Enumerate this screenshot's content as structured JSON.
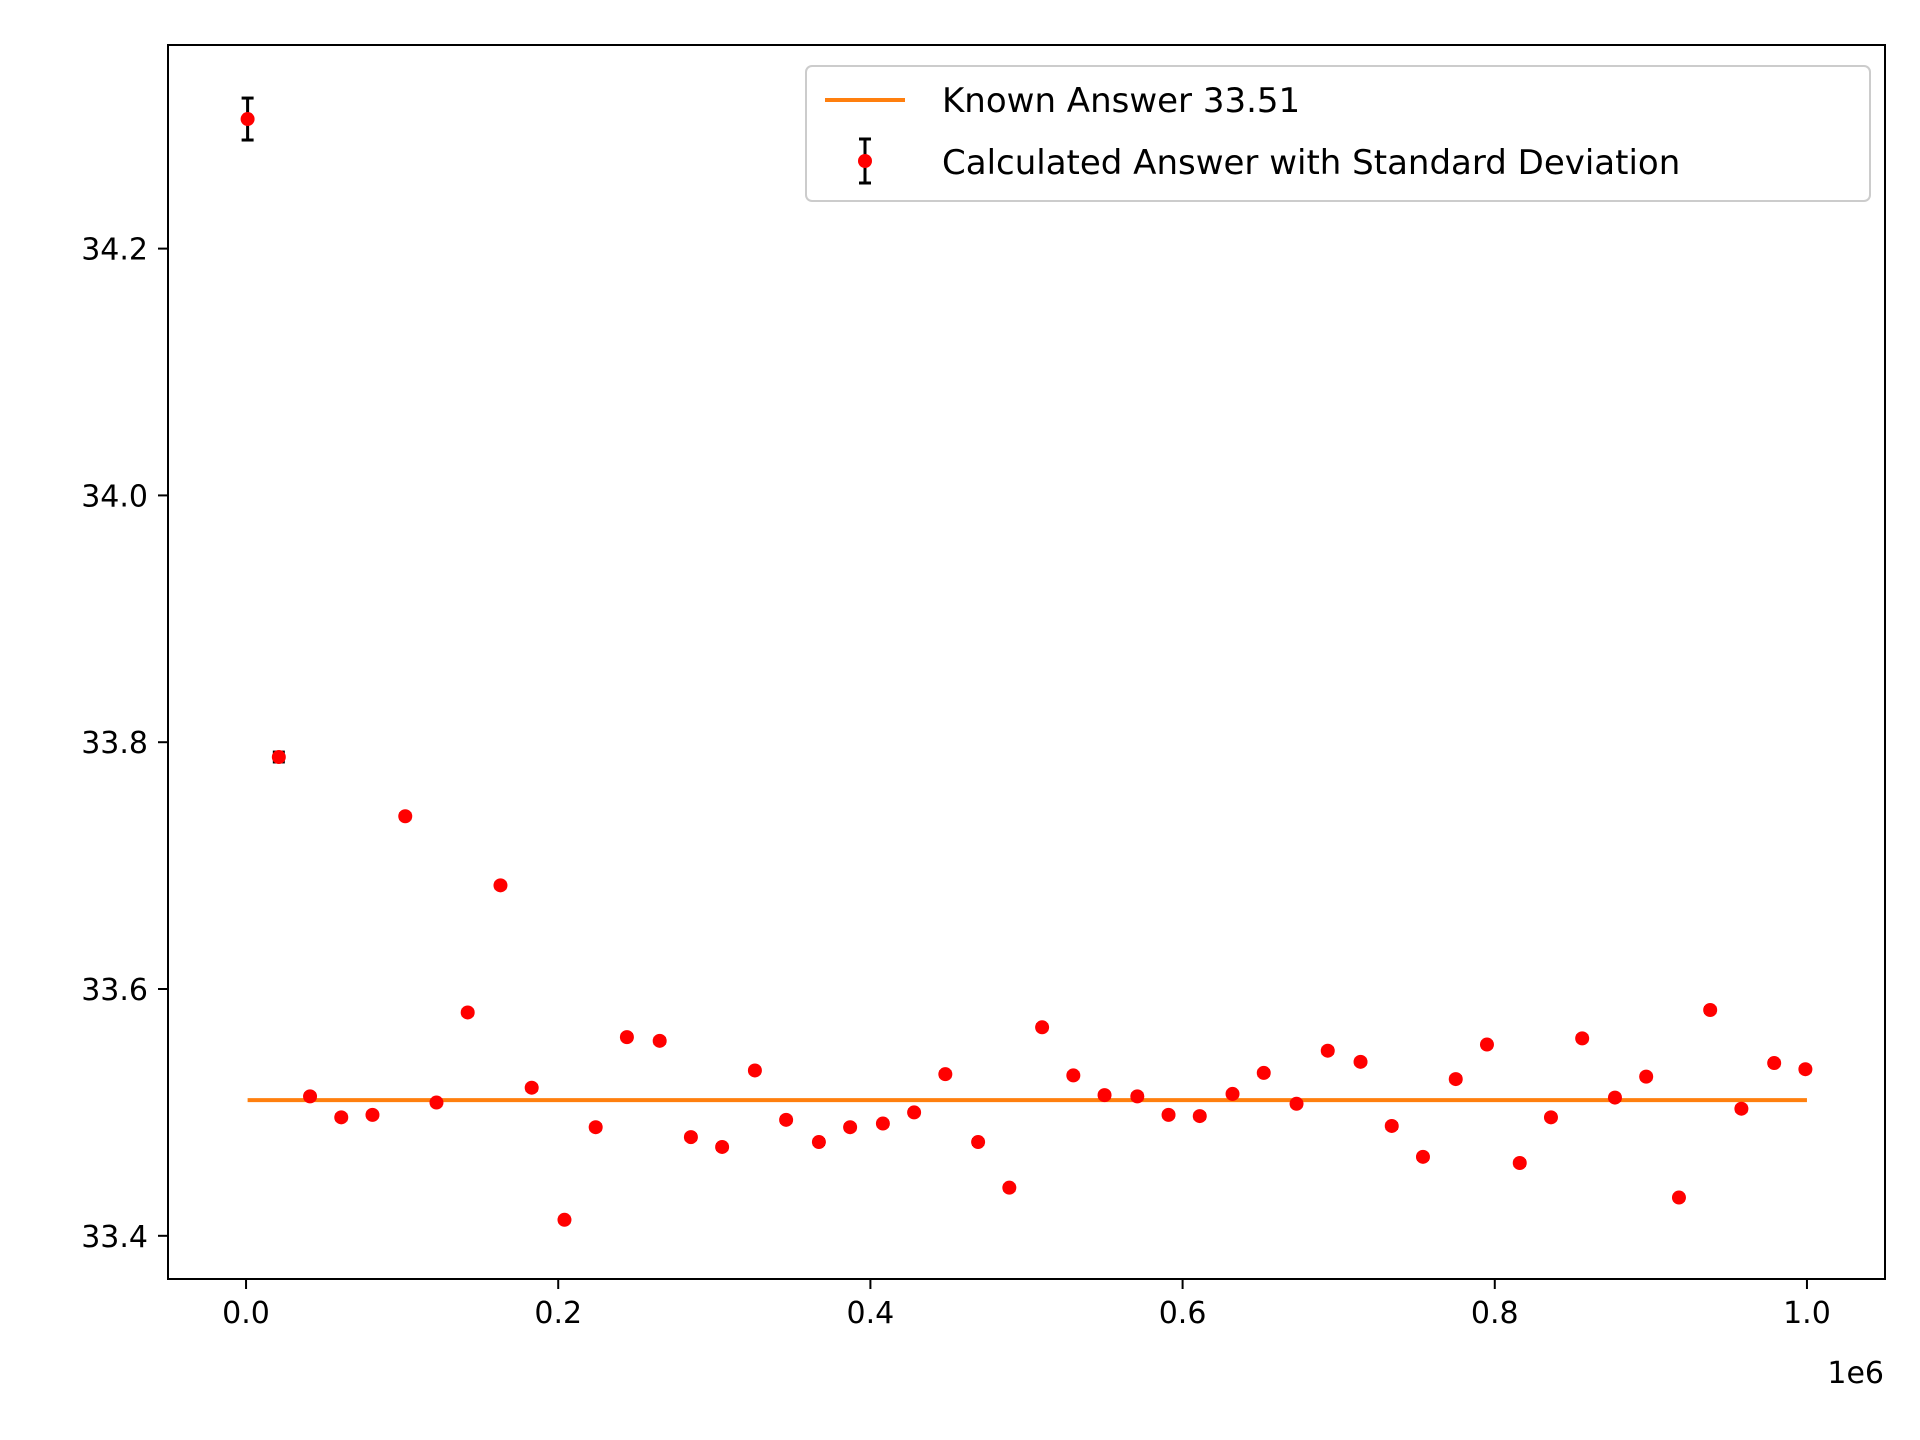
{
  "chart_data": {
    "type": "scatter",
    "title": "",
    "xlabel": "",
    "ylabel": "",
    "x_offset_label": "1e6",
    "xlim": [
      -50000,
      1050000
    ],
    "ylim": [
      33.365,
      34.365
    ],
    "xticks": [
      0,
      200000,
      400000,
      600000,
      800000,
      1000000
    ],
    "xtick_labels": [
      "0.0",
      "0.2",
      "0.4",
      "0.6",
      "0.8",
      "1.0"
    ],
    "yticks": [
      33.4,
      33.6,
      33.8,
      34.0,
      34.2
    ],
    "ytick_labels": [
      "33.4",
      "33.6",
      "33.8",
      "34.0",
      "34.2"
    ],
    "grid": false,
    "legend_position": "top-right",
    "colors": {
      "known_line": "#ff7f0e",
      "points": "#ff0000",
      "errorbars": "#000000"
    },
    "known_answer": {
      "name": "Known Answer 33.51",
      "y": 33.51,
      "x_range": [
        1000,
        1000000
      ]
    },
    "calculated": {
      "name": "Calculated Answer with Standard Deviation",
      "x": [
        1000,
        21000,
        41000,
        61000,
        81000,
        102000,
        122000,
        142000,
        163000,
        183000,
        204000,
        224000,
        244000,
        265000,
        285000,
        305000,
        326000,
        346000,
        367000,
        387000,
        408000,
        428000,
        448000,
        469000,
        489000,
        510000,
        530000,
        550000,
        571000,
        591000,
        611000,
        632000,
        652000,
        673000,
        693000,
        714000,
        734000,
        754000,
        775000,
        795000,
        816000,
        836000,
        856000,
        877000,
        897000,
        918000,
        938000,
        958000,
        979000,
        999000
      ],
      "y": [
        34.305,
        33.788,
        33.513,
        33.496,
        33.498,
        33.74,
        33.508,
        33.581,
        33.684,
        33.52,
        33.413,
        33.488,
        33.561,
        33.558,
        33.48,
        33.472,
        33.534,
        33.494,
        33.476,
        33.488,
        33.491,
        33.5,
        33.531,
        33.476,
        33.439,
        33.569,
        33.53,
        33.514,
        33.513,
        33.498,
        33.497,
        33.515,
        33.532,
        33.507,
        33.55,
        33.541,
        33.489,
        33.464,
        33.527,
        33.555,
        33.459,
        33.496,
        33.56,
        33.512,
        33.529,
        33.431,
        33.583,
        33.503,
        33.54,
        33.535
      ],
      "yerr": [
        0.017,
        0.004,
        0.002,
        0.002,
        0.002,
        0.002,
        0.002,
        0.002,
        0.002,
        0.002,
        0.002,
        0.002,
        0.002,
        0.002,
        0.002,
        0.002,
        0.002,
        0.002,
        0.002,
        0.002,
        0.002,
        0.002,
        0.002,
        0.002,
        0.002,
        0.002,
        0.002,
        0.002,
        0.002,
        0.002,
        0.002,
        0.002,
        0.002,
        0.002,
        0.002,
        0.002,
        0.002,
        0.002,
        0.002,
        0.002,
        0.002,
        0.002,
        0.002,
        0.002,
        0.002,
        0.002,
        0.002,
        0.002,
        0.002,
        0.002
      ]
    }
  }
}
